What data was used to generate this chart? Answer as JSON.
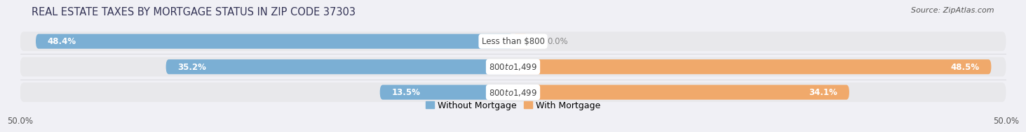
{
  "title": "REAL ESTATE TAXES BY MORTGAGE STATUS IN ZIP CODE 37303",
  "source": "Source: ZipAtlas.com",
  "categories": [
    "Less than $800",
    "$800 to $1,499",
    "$800 to $1,499"
  ],
  "without_mortgage": [
    48.4,
    35.2,
    13.5
  ],
  "with_mortgage": [
    0.0,
    48.5,
    34.1
  ],
  "color_without": "#7BAFD4",
  "color_with": "#F0A96B",
  "color_without_light": "#B8D4E8",
  "color_with_light": "#F5D3AE",
  "bar_bg_color": "#E8E8EB",
  "xlim": [
    -50,
    50
  ],
  "xticks": [
    -50,
    50
  ],
  "xticklabels": [
    "50.0%",
    "50.0%"
  ],
  "bar_height": 0.58,
  "title_fontsize": 10.5,
  "source_fontsize": 8,
  "label_fontsize": 8.5,
  "value_fontsize": 8.5,
  "background_color": "#F0F0F5",
  "legend_labels": [
    "Without Mortgage",
    "With Mortgage"
  ]
}
